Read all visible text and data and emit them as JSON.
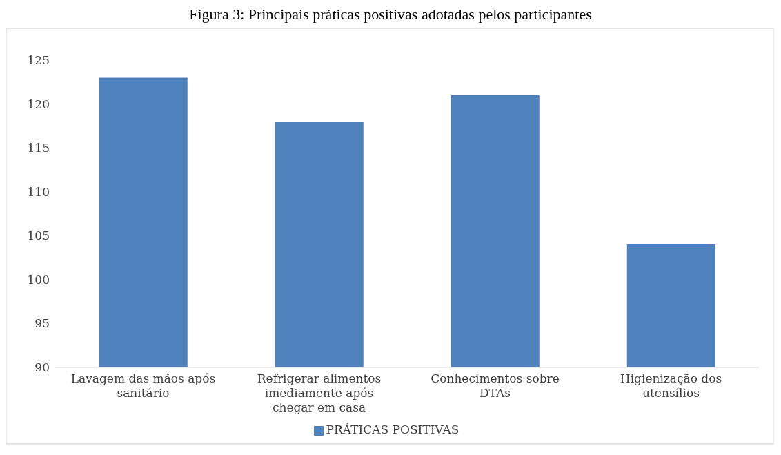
{
  "chart_data": {
    "type": "bar",
    "title": "Figura 3: Principais práticas positivas adotadas pelos participantes",
    "categories": [
      "Lavagem das mãos após sanitário",
      "Refrigerar alimentos imediamente após chegar em casa",
      "Conhecimentos sobre DTAs",
      "Higienização dos utensílios"
    ],
    "series": [
      {
        "name": "PRÁTICAS POSITIVAS",
        "color": "#4f81bd",
        "values": [
          123,
          118,
          121,
          104
        ]
      }
    ],
    "ylim": [
      90,
      125
    ],
    "yticks": [
      90,
      95,
      100,
      105,
      110,
      115,
      120,
      125
    ],
    "grid": false,
    "legend": "bottom"
  }
}
